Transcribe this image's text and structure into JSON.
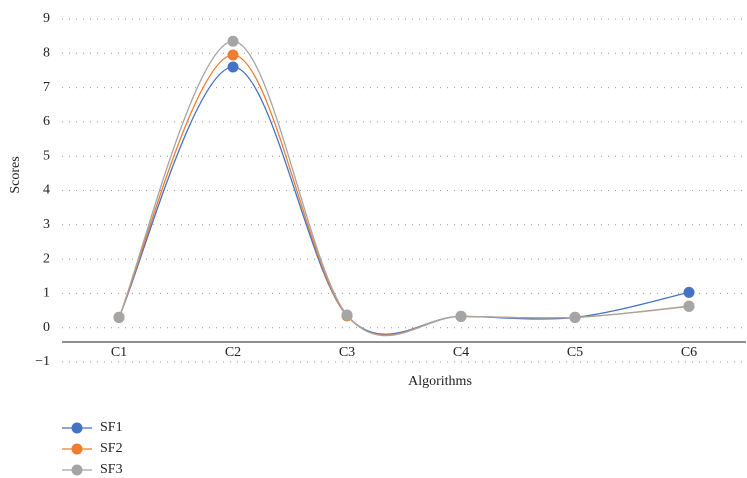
{
  "chart_data": {
    "type": "line",
    "smooth": true,
    "x_label": "Algorithms",
    "y_label": "Scores",
    "categories": [
      "C1",
      "C2",
      "C3",
      "C4",
      "C5",
      "C6"
    ],
    "series": [
      {
        "name": "SF1",
        "color": "#4472c4",
        "values": [
          0.3,
          7.6,
          0.35,
          0.33,
          0.3,
          1.03
        ]
      },
      {
        "name": "SF2",
        "color": "#ed7d31",
        "values": [
          0.3,
          7.95,
          0.35,
          0.33,
          0.3,
          0.63
        ]
      },
      {
        "name": "SF3",
        "color": "#a5a5a5",
        "values": [
          0.3,
          8.35,
          0.37,
          0.33,
          0.3,
          0.62
        ]
      }
    ],
    "ylim": [
      -1,
      9
    ],
    "yticks": [
      {
        "value": -1,
        "label": "−1"
      },
      0,
      1,
      2,
      3,
      4,
      5,
      6,
      7,
      8,
      9
    ],
    "grid": true,
    "legend": "bottom-left"
  }
}
